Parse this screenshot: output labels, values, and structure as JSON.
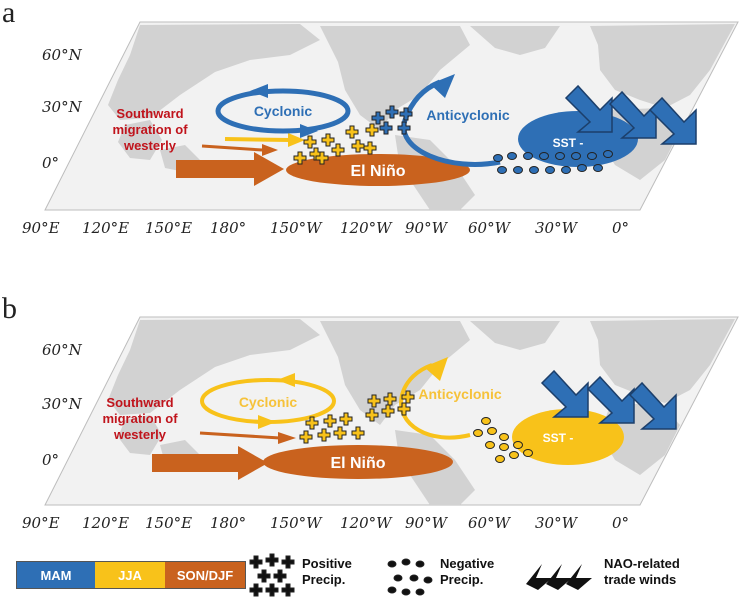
{
  "panels": [
    {
      "letter": "a",
      "labels": {
        "southward": [
          "Southward",
          "migration of",
          "westerly"
        ],
        "cyclonic": "Cyclonic",
        "anticyclonic": "Anticyclonic",
        "el_nino": "El Niño",
        "sst": "SST -"
      },
      "season_color": "#2e6fb5"
    },
    {
      "letter": "b",
      "labels": {
        "southward": [
          "Southward",
          "migration of",
          "westerly"
        ],
        "cyclonic": "Cyclonic",
        "anticyclonic": "Anticyclonic",
        "el_nino": "El Niño",
        "sst": "SST -"
      },
      "season_color": "#f8c21a"
    }
  ],
  "lat_labels": [
    "60°N",
    "30°N",
    "0°"
  ],
  "lon_labels": [
    "90°E",
    "120°E",
    "150°E",
    "180°",
    "150°W",
    "120°W",
    "90°W",
    "60°W",
    "30°W",
    "0°"
  ],
  "legend": {
    "seasons": [
      "MAM",
      "JJA",
      "SON/DJF"
    ],
    "positive": [
      "Positive",
      "Precip."
    ],
    "negative": [
      "Negative",
      "Precip."
    ],
    "trade": [
      "NAO-related",
      "trade winds"
    ]
  },
  "colors": {
    "mam": "#2e6fb5",
    "jja": "#f8c21a",
    "son_djf": "#c9621e",
    "westerly_text": "#c0141c",
    "land": "#d4d4d4"
  }
}
